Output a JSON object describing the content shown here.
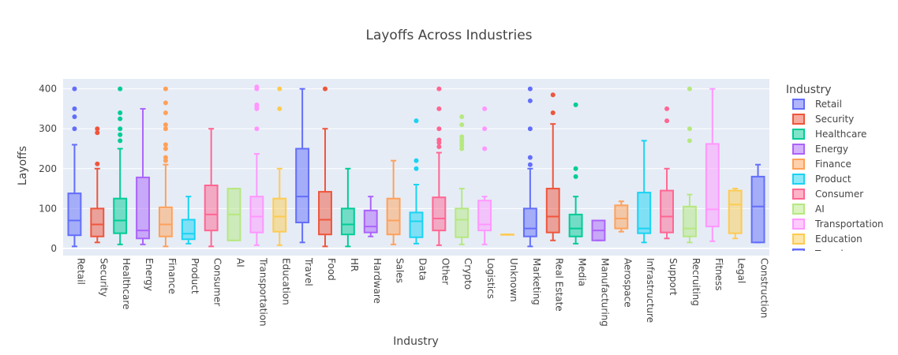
{
  "chart_data": {
    "type": "box",
    "title": "Layoffs Across Industries",
    "xlabel": "Industry",
    "ylabel": "Layoffs",
    "ylim": [
      -18,
      425
    ],
    "yticks": [
      0,
      100,
      200,
      300,
      400
    ],
    "grid": true,
    "legend_title": "Industry",
    "legend_position": "right",
    "legend_visible_count": 11,
    "series": [
      {
        "name": "Retail",
        "color": "#636efa",
        "min": 5,
        "q1": 33,
        "median": 70,
        "q3": 138,
        "max": 260,
        "outliers": [
          300,
          330,
          350,
          400
        ]
      },
      {
        "name": "Security",
        "color": "#EF553B",
        "min": 15,
        "q1": 30,
        "median": 60,
        "q3": 100,
        "max": 200,
        "outliers": [
          212,
          290,
          300
        ]
      },
      {
        "name": "Healthcare",
        "color": "#00cc96",
        "min": 10,
        "q1": 38,
        "median": 70,
        "q3": 125,
        "max": 250,
        "outliers": [
          270,
          285,
          300,
          325,
          340,
          400
        ]
      },
      {
        "name": "Energy",
        "color": "#ab63fa",
        "min": 10,
        "q1": 25,
        "median": 45,
        "q3": 178,
        "max": 350,
        "outliers": []
      },
      {
        "name": "Finance",
        "color": "#FFA15A",
        "min": 5,
        "q1": 30,
        "median": 60,
        "q3": 103,
        "max": 210,
        "outliers": [
          220,
          228,
          250,
          260,
          300,
          310,
          340,
          365,
          400
        ]
      },
      {
        "name": "Product",
        "color": "#19d3f3",
        "min": 12,
        "q1": 23,
        "median": 37,
        "q3": 72,
        "max": 130,
        "outliers": []
      },
      {
        "name": "Consumer",
        "color": "#FF6692",
        "min": 5,
        "q1": 45,
        "median": 85,
        "q3": 158,
        "max": 300,
        "outliers": []
      },
      {
        "name": "AI",
        "color": "#B6E880",
        "min": 20,
        "q1": 20,
        "median": 85,
        "q3": 150,
        "max": 150,
        "outliers": []
      },
      {
        "name": "Transportation",
        "color": "#FF97FF",
        "min": 8,
        "q1": 40,
        "median": 80,
        "q3": 130,
        "max": 237,
        "outliers": [
          300,
          350,
          355,
          360,
          400,
          405
        ]
      },
      {
        "name": "Education",
        "color": "#FECB52",
        "min": 8,
        "q1": 42,
        "median": 80,
        "q3": 125,
        "max": 200,
        "outliers": [
          350,
          400
        ]
      },
      {
        "name": "Travel",
        "color": "#636efa",
        "min": 15,
        "q1": 65,
        "median": 130,
        "q3": 250,
        "max": 400,
        "outliers": []
      },
      {
        "name": "Food",
        "color": "#EF553B",
        "min": 5,
        "q1": 35,
        "median": 72,
        "q3": 142,
        "max": 300,
        "outliers": [
          400
        ]
      },
      {
        "name": "HR",
        "color": "#00cc96",
        "min": 5,
        "q1": 35,
        "median": 60,
        "q3": 100,
        "max": 200,
        "outliers": []
      },
      {
        "name": "Hardware",
        "color": "#ab63fa",
        "min": 30,
        "q1": 40,
        "median": 55,
        "q3": 95,
        "max": 130,
        "outliers": []
      },
      {
        "name": "Sales",
        "color": "#FFA15A",
        "min": 10,
        "q1": 35,
        "median": 70,
        "q3": 125,
        "max": 220,
        "outliers": []
      },
      {
        "name": "Data",
        "color": "#19d3f3",
        "min": 12,
        "q1": 28,
        "median": 68,
        "q3": 90,
        "max": 160,
        "outliers": [
          200,
          220,
          320
        ]
      },
      {
        "name": "Other",
        "color": "#FF6692",
        "min": 8,
        "q1": 45,
        "median": 75,
        "q3": 128,
        "max": 240,
        "outliers": [
          255,
          265,
          272,
          300,
          350,
          400
        ]
      },
      {
        "name": "Crypto",
        "color": "#B6E880",
        "min": 10,
        "q1": 28,
        "median": 72,
        "q3": 100,
        "max": 150,
        "outliers": [
          250,
          258,
          265,
          272,
          280,
          310,
          330
        ]
      },
      {
        "name": "Logistics",
        "color": "#FF97FF",
        "min": 10,
        "q1": 45,
        "median": 60,
        "q3": 120,
        "max": 130,
        "outliers": [
          250,
          300,
          350
        ]
      },
      {
        "name": "Unknown",
        "color": "#FECB52",
        "min": 35,
        "q1": 35,
        "median": 35,
        "q3": 35,
        "max": 35,
        "outliers": []
      },
      {
        "name": "Marketing",
        "color": "#636efa",
        "min": 5,
        "q1": 30,
        "median": 50,
        "q3": 100,
        "max": 200,
        "outliers": [
          210,
          228,
          300,
          370,
          400
        ]
      },
      {
        "name": "Real Estate",
        "color": "#EF553B",
        "min": 20,
        "q1": 40,
        "median": 80,
        "q3": 150,
        "max": 312,
        "outliers": [
          340,
          385
        ]
      },
      {
        "name": "Media",
        "color": "#00cc96",
        "min": 12,
        "q1": 30,
        "median": 50,
        "q3": 85,
        "max": 130,
        "outliers": [
          180,
          200,
          360
        ]
      },
      {
        "name": "Manufacturing",
        "color": "#ab63fa",
        "min": 20,
        "q1": 20,
        "median": 45,
        "q3": 70,
        "max": 70,
        "outliers": []
      },
      {
        "name": "Aerospace",
        "color": "#FFA15A",
        "min": 42,
        "q1": 50,
        "median": 75,
        "q3": 108,
        "max": 118,
        "outliers": []
      },
      {
        "name": "Infrastructure",
        "color": "#19d3f3",
        "min": 15,
        "q1": 38,
        "median": 50,
        "q3": 140,
        "max": 270,
        "outliers": []
      },
      {
        "name": "Support",
        "color": "#FF6692",
        "min": 25,
        "q1": 40,
        "median": 80,
        "q3": 145,
        "max": 200,
        "outliers": [
          320,
          350
        ]
      },
      {
        "name": "Recruiting",
        "color": "#B6E880",
        "min": 15,
        "q1": 30,
        "median": 50,
        "q3": 105,
        "max": 135,
        "outliers": [
          270,
          300,
          400
        ]
      },
      {
        "name": "Fitness",
        "color": "#FF97FF",
        "min": 18,
        "q1": 55,
        "median": 98,
        "q3": 262,
        "max": 400,
        "outliers": []
      },
      {
        "name": "Legal",
        "color": "#FECB52",
        "min": 25,
        "q1": 38,
        "median": 110,
        "q3": 145,
        "max": 150,
        "outliers": []
      },
      {
        "name": "Construction",
        "color": "#636efa",
        "min": 15,
        "q1": 15,
        "median": 105,
        "q3": 180,
        "max": 210,
        "outliers": []
      }
    ]
  }
}
